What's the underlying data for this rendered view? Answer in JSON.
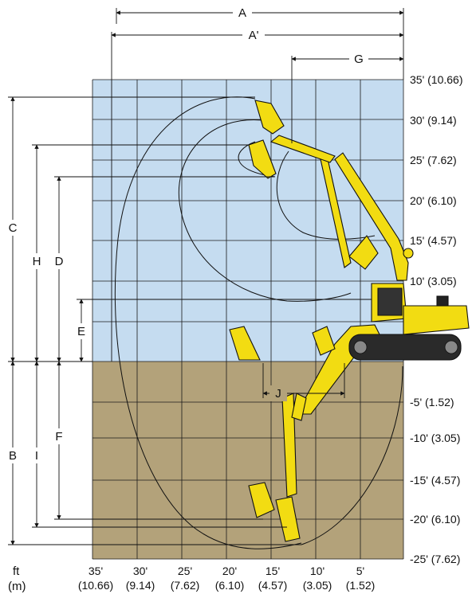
{
  "colors": {
    "sky": "#c5dcf0",
    "ground": "#b3a27a",
    "grid": "#1a1a1a",
    "machine": "#f2dc12",
    "track": "#2a2a2a"
  },
  "dimensions": {
    "A": "A",
    "A_prime": "A'",
    "G": "G",
    "C": "C",
    "H": "H",
    "D": "D",
    "E": "E",
    "B": "B",
    "I": "I",
    "F": "F",
    "J": "J"
  },
  "height_ticks": [
    {
      "label": "35' (10.66)"
    },
    {
      "label": "30' (9.14)"
    },
    {
      "label": "25' (7.62)"
    },
    {
      "label": "20' (6.10)"
    },
    {
      "label": "15' (4.57)"
    },
    {
      "label": "10' (3.05)"
    },
    {
      "label": "-5' (1.52)"
    },
    {
      "label": "-10' (3.05)"
    },
    {
      "label": "-15' (4.57)"
    },
    {
      "label": "-20' (6.10)"
    },
    {
      "label": "-25' (7.62)"
    }
  ],
  "reach_ticks": [
    {
      "ft": "35'",
      "m": "(10.66)"
    },
    {
      "ft": "30'",
      "m": "(9.14)"
    },
    {
      "ft": "25'",
      "m": "(7.62)"
    },
    {
      "ft": "20'",
      "m": "(6.10)"
    },
    {
      "ft": "15'",
      "m": "(4.57)"
    },
    {
      "ft": "10'",
      "m": "(3.05)"
    },
    {
      "ft": "5'",
      "m": "(1.52)"
    }
  ],
  "units": {
    "ft": "ft",
    "m": "(m)"
  }
}
